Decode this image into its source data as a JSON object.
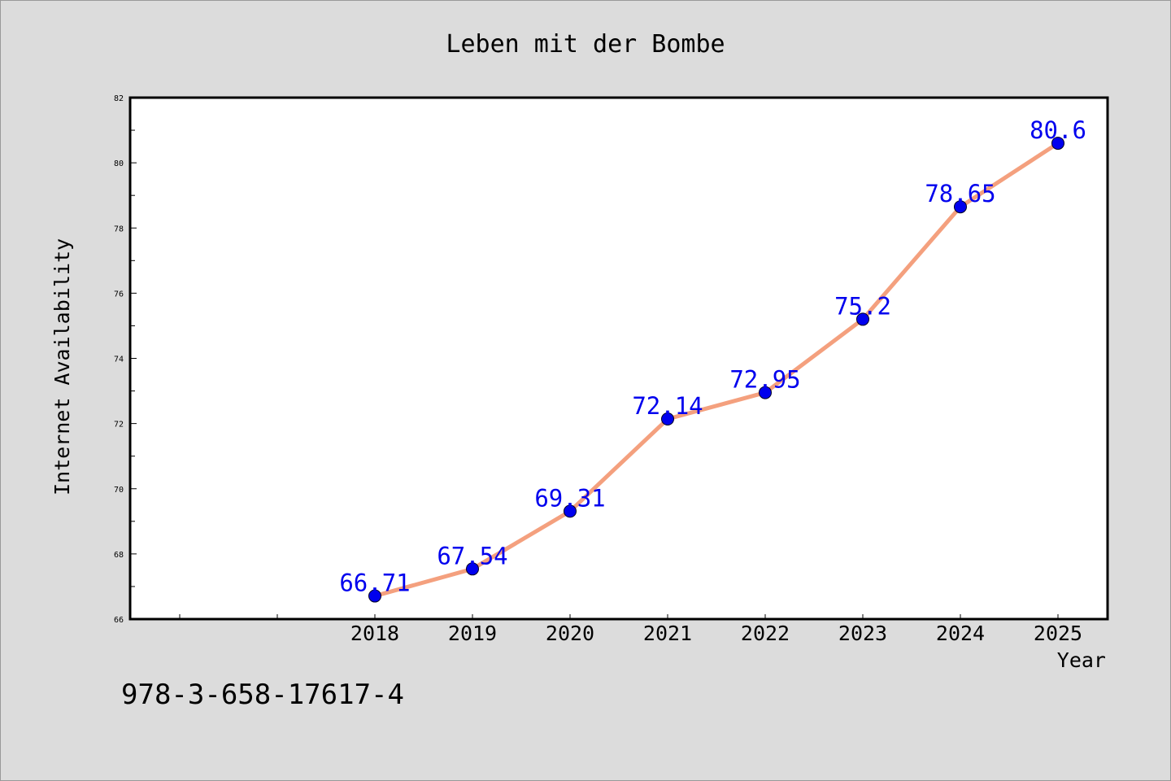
{
  "chart_data": {
    "type": "line",
    "title": "Leben mit der Bombe",
    "xlabel": "Year",
    "ylabel": "Internet Availability",
    "x": [
      "2018",
      "2019",
      "2020",
      "2021",
      "2022",
      "2023",
      "2024",
      "2025"
    ],
    "series": [
      {
        "values": [
          66.71,
          67.54,
          69.31,
          72.14,
          72.95,
          75.2,
          78.65,
          80.6
        ],
        "line_color": "#f4a07e",
        "marker_color": "#0000ee"
      }
    ],
    "data_labels": [
      "66.71",
      "67.54",
      "69.31",
      "72.14",
      "72.95",
      "75.2",
      "78.65",
      "80.6"
    ],
    "ylim": [
      66,
      82
    ],
    "yticks": [
      "66",
      "68",
      "70",
      "72",
      "74",
      "76",
      "78",
      "80",
      "82"
    ],
    "grid": false,
    "label_color": "#0000ee",
    "background_color": "#dcdcdc",
    "plot_background_color": "#ffffff"
  },
  "footer_text": "978-3-658-17617-4"
}
